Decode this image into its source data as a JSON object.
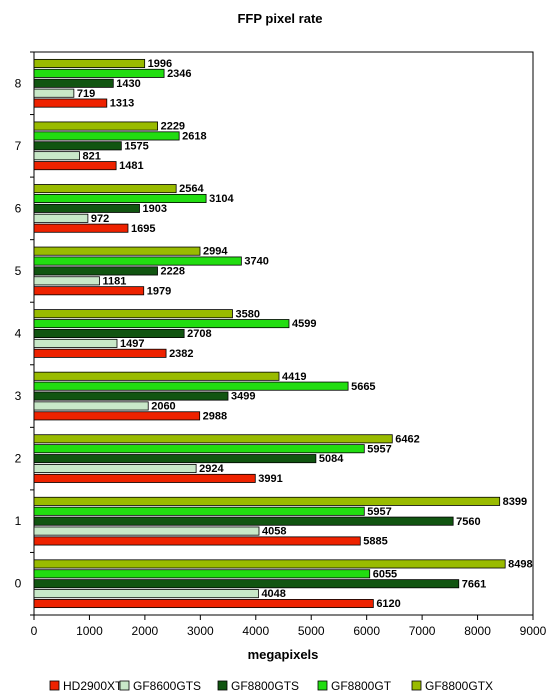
{
  "chart_data": {
    "type": "bar",
    "orientation": "horizontal",
    "title": "FFP pixel rate",
    "xlabel": "megapixels",
    "ylabel": "",
    "xlim": [
      0,
      9000
    ],
    "xticks": [
      0,
      1000,
      2000,
      3000,
      4000,
      5000,
      6000,
      7000,
      8000,
      9000
    ],
    "grid": "vertical-dashed",
    "legend_position": "bottom",
    "categories": [
      "0",
      "1",
      "2",
      "3",
      "4",
      "5",
      "6",
      "7",
      "8"
    ],
    "series": [
      {
        "name": "HD2900XT",
        "color": "#ee2200",
        "values": [
          6120,
          5885,
          3991,
          2988,
          2382,
          1979,
          1695,
          1481,
          1313
        ]
      },
      {
        "name": "GF8600GTS",
        "color": "#c8e8c8",
        "values": [
          4048,
          4058,
          2924,
          2060,
          1497,
          1181,
          972,
          821,
          719
        ]
      },
      {
        "name": "GF8800GTS",
        "color": "#115511",
        "values": [
          7661,
          7560,
          5084,
          3499,
          2708,
          2228,
          1903,
          1575,
          1430
        ]
      },
      {
        "name": "GF8800GT",
        "color": "#22dd11",
        "values": [
          6055,
          5957,
          5957,
          5665,
          4599,
          3740,
          3104,
          2618,
          2346
        ]
      },
      {
        "name": "GF8800GTX",
        "color": "#99bb00",
        "values": [
          8498,
          8399,
          6462,
          4419,
          3580,
          2994,
          2564,
          2229,
          1996
        ]
      }
    ]
  }
}
